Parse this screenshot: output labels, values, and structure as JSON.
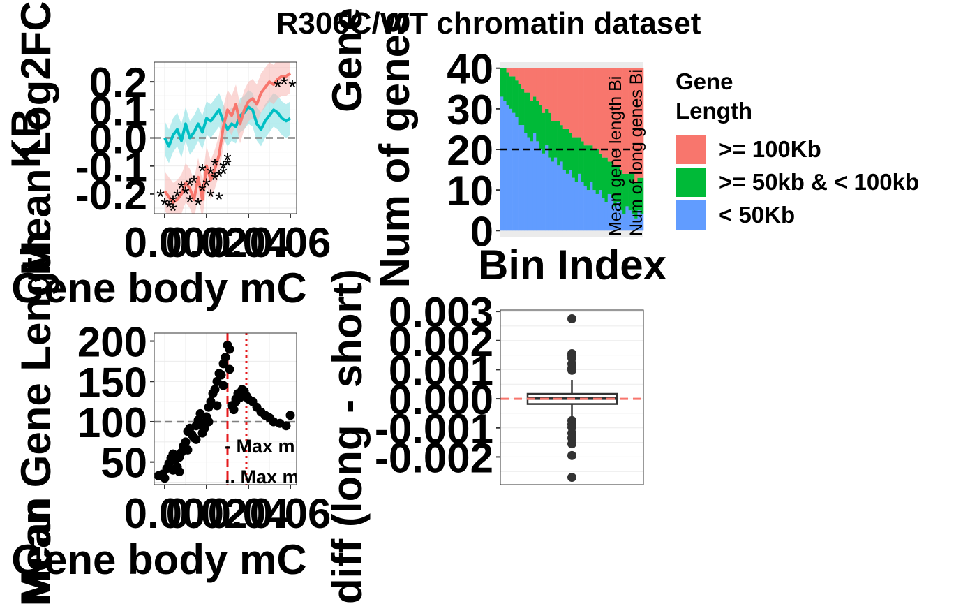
{
  "figure": {
    "title": "R306C/WT chromatin dataset"
  },
  "chart_data": [
    {
      "id": "panel_a",
      "type": "line",
      "xlabel": "Gene body mC",
      "ylabel": "Mean Log2FC",
      "ylabel_overlap": "KB",
      "xlim": [
        -0.005,
        0.063
      ],
      "ylim": [
        -0.27,
        0.27
      ],
      "x_ticks": [
        0.0,
        0.02,
        0.04,
        0.06
      ],
      "x_tick_labels": [
        "0.00",
        "0.02",
        "0.04",
        "0.06"
      ],
      "y_ticks": [
        0.2,
        0.1,
        0.0,
        -0.1,
        -0.2
      ],
      "y_tick_labels": [
        "0.2",
        "0.1",
        "0.0",
        "-0.1",
        "-0.2"
      ],
      "reference_line_y": 0,
      "grid": true,
      "series": [
        {
          "color": "#00BFC4",
          "fill": "#7FDFE2",
          "x": [
            0.0,
            0.002,
            0.004,
            0.006,
            0.008,
            0.01,
            0.012,
            0.014,
            0.016,
            0.018,
            0.02,
            0.022,
            0.024,
            0.026,
            0.028,
            0.03,
            0.032,
            0.034,
            0.036,
            0.038,
            0.04,
            0.042,
            0.044,
            0.046,
            0.048,
            0.05,
            0.052,
            0.054,
            0.056,
            0.058,
            0.06
          ],
          "values": [
            0.0,
            -0.03,
            0.01,
            0.03,
            -0.01,
            0.05,
            0.0,
            0.02,
            0.05,
            0.02,
            0.07,
            0.06,
            0.08,
            0.1,
            0.06,
            0.03,
            0.05,
            0.04,
            0.08,
            0.09,
            0.11,
            0.1,
            0.05,
            0.03,
            0.06,
            0.08,
            0.1,
            0.09,
            0.07,
            0.06,
            0.07
          ],
          "band": 0.06
        },
        {
          "color": "#F8766D",
          "fill": "#F8B7B2",
          "x": [
            0.0,
            0.002,
            0.004,
            0.006,
            0.008,
            0.01,
            0.012,
            0.014,
            0.016,
            0.018,
            0.02,
            0.022,
            0.024,
            0.026,
            0.028,
            0.03,
            0.032,
            0.034,
            0.036,
            0.038,
            0.04,
            0.042,
            0.044,
            0.046,
            0.048,
            0.05,
            0.052,
            0.054,
            0.056,
            0.058,
            0.06
          ],
          "values": [
            -0.19,
            -0.21,
            -0.23,
            -0.22,
            -0.2,
            -0.16,
            -0.18,
            -0.22,
            -0.14,
            -0.22,
            -0.1,
            -0.15,
            -0.11,
            -0.06,
            0.04,
            0.1,
            0.08,
            0.12,
            0.05,
            0.1,
            0.13,
            0.14,
            0.12,
            0.16,
            0.18,
            0.2,
            0.19,
            0.21,
            0.22,
            0.22,
            0.23
          ],
          "band": 0.07
        }
      ],
      "significant": {
        "marker": "*",
        "x": [
          -0.002,
          0.0,
          0.002,
          0.004,
          0.006,
          0.008,
          0.01,
          0.012,
          0.014,
          0.016,
          0.018,
          0.02,
          0.022,
          0.024,
          0.026,
          0.028,
          0.03,
          0.004,
          0.012,
          0.018,
          0.022,
          0.024,
          0.026,
          0.028,
          0.03,
          0.054,
          0.057,
          0.061
        ],
        "y": [
          -0.2,
          -0.23,
          -0.24,
          -0.22,
          -0.2,
          -0.17,
          -0.19,
          -0.22,
          -0.15,
          -0.23,
          -0.11,
          -0.16,
          -0.12,
          -0.09,
          -0.13,
          -0.1,
          -0.07,
          -0.25,
          -0.16,
          -0.18,
          -0.2,
          -0.14,
          -0.21,
          -0.12,
          -0.09,
          0.19,
          0.2,
          0.19
        ]
      }
    },
    {
      "id": "panel_b",
      "type": "bar",
      "stacked": true,
      "xlabel": "Bin Index",
      "ylabel": "Num of genes",
      "ylabel_overlap": "Gene",
      "ylim": [
        -1.5,
        41.5
      ],
      "y_ticks": [
        0,
        10,
        20,
        30,
        40
      ],
      "y_tick_labels": [
        "0",
        "10",
        "20",
        "30",
        "40"
      ],
      "reference_line_y": 20,
      "total_per_bin": 40,
      "legend": {
        "title": "Gene Length",
        "placement": "right",
        "entries": [
          {
            "label": ">= 100Kb",
            "color": "#F8766D"
          },
          {
            "label": ">= 50kb & < 100kb",
            "color": "#00BA38"
          },
          {
            "label": "< 50Kb",
            "color": "#619CFF"
          }
        ]
      },
      "annotations": [
        "Mean gene length Bi",
        "Num of long genes Bi"
      ],
      "short_counts": [
        33,
        32,
        31,
        30,
        29,
        28,
        26,
        26,
        24,
        23,
        22,
        24,
        22,
        20,
        19,
        21,
        18,
        17,
        18,
        16,
        17,
        15,
        14,
        15,
        13,
        12,
        14,
        12,
        11,
        10,
        12,
        10,
        9,
        10,
        8,
        7,
        9,
        8,
        6,
        7,
        5,
        4,
        6,
        5,
        4,
        3,
        5,
        4
      ],
      "mid_counts": [
        7,
        8,
        8,
        8,
        9,
        9,
        10,
        9,
        10,
        11,
        10,
        9,
        10,
        11,
        10,
        9,
        11,
        10,
        9,
        11,
        9,
        10,
        11,
        9,
        10,
        11,
        9,
        10,
        10,
        11,
        9,
        10,
        11,
        9,
        10,
        11,
        8,
        9,
        10,
        9,
        10,
        10,
        8,
        9,
        10,
        9,
        8,
        9
      ]
    },
    {
      "id": "panel_c",
      "type": "scatter",
      "xlabel": "Gene body mC",
      "ylabel": "Mean Gene Length",
      "ylabel_overlap": "Mean",
      "xlim": [
        -0.005,
        0.063
      ],
      "ylim": [
        22,
        210
      ],
      "x_ticks": [
        0.0,
        0.02,
        0.04,
        0.06
      ],
      "x_tick_labels": [
        "0.00",
        "0.02",
        "0.04",
        "0.06"
      ],
      "y_ticks": [
        200,
        150,
        100,
        50
      ],
      "y_tick_labels": [
        "200",
        "150",
        "100",
        "50"
      ],
      "reference_line_y": 100,
      "vlines": [
        {
          "x": 0.03,
          "style": "dashed",
          "color": "#E41A1C",
          "label": "- Max m"
        },
        {
          "x": 0.039,
          "style": "dotted",
          "color": "#E41A1C",
          "label": ".. Max m"
        }
      ],
      "x": [
        -0.003,
        -0.001,
        0.0,
        0.001,
        0.002,
        0.003,
        0.004,
        0.005,
        0.006,
        0.007,
        0.008,
        0.009,
        0.01,
        0.011,
        0.012,
        0.013,
        0.014,
        0.015,
        0.016,
        0.017,
        0.018,
        0.019,
        0.02,
        0.021,
        0.022,
        0.023,
        0.024,
        0.025,
        0.026,
        0.027,
        0.028,
        0.029,
        0.03,
        0.031,
        0.032,
        0.033,
        0.034,
        0.035,
        0.036,
        0.037,
        0.038,
        0.039,
        0.04,
        0.042,
        0.044,
        0.046,
        0.048,
        0.05,
        0.052,
        0.055,
        0.058,
        0.06,
        0.004,
        0.007,
        0.011,
        0.015,
        0.018,
        0.021,
        0.025,
        0.028,
        0.031,
        0.034,
        0.037
      ],
      "values": [
        33,
        35,
        30,
        42,
        48,
        55,
        60,
        52,
        44,
        38,
        62,
        70,
        75,
        88,
        92,
        84,
        80,
        95,
        102,
        110,
        98,
        92,
        106,
        118,
        125,
        135,
        140,
        150,
        160,
        158,
        172,
        180,
        195,
        190,
        120,
        115,
        128,
        135,
        130,
        140,
        138,
        132,
        128,
        125,
        118,
        112,
        108,
        105,
        100,
        98,
        95,
        108,
        40,
        56,
        65,
        78,
        86,
        100,
        120,
        145,
        165,
        125,
        135
      ]
    },
    {
      "id": "panel_d",
      "type": "box",
      "ylabel": "diff (long - short)",
      "ylim": [
        -0.00295,
        0.00305
      ],
      "y_ticks": [
        0.003,
        0.002,
        0.001,
        0.0,
        -0.001,
        -0.002
      ],
      "y_tick_labels": [
        "0.003",
        "0.002",
        "0.001",
        "0.000",
        "-0.001",
        "-0.002"
      ],
      "reference_line_y": 0,
      "box": {
        "q1": -0.00018,
        "median": 1e-05,
        "q3": 0.00017,
        "whisker_low": -0.00065,
        "whisker_high": 0.00065
      },
      "outliers": [
        0.00275,
        0.00155,
        0.00148,
        0.0014,
        0.0012,
        0.00105,
        0.00098,
        -0.00075,
        -0.00088,
        -0.00098,
        -0.00118,
        -0.00135,
        -0.00155,
        -0.00195,
        -0.0027
      ]
    }
  ]
}
